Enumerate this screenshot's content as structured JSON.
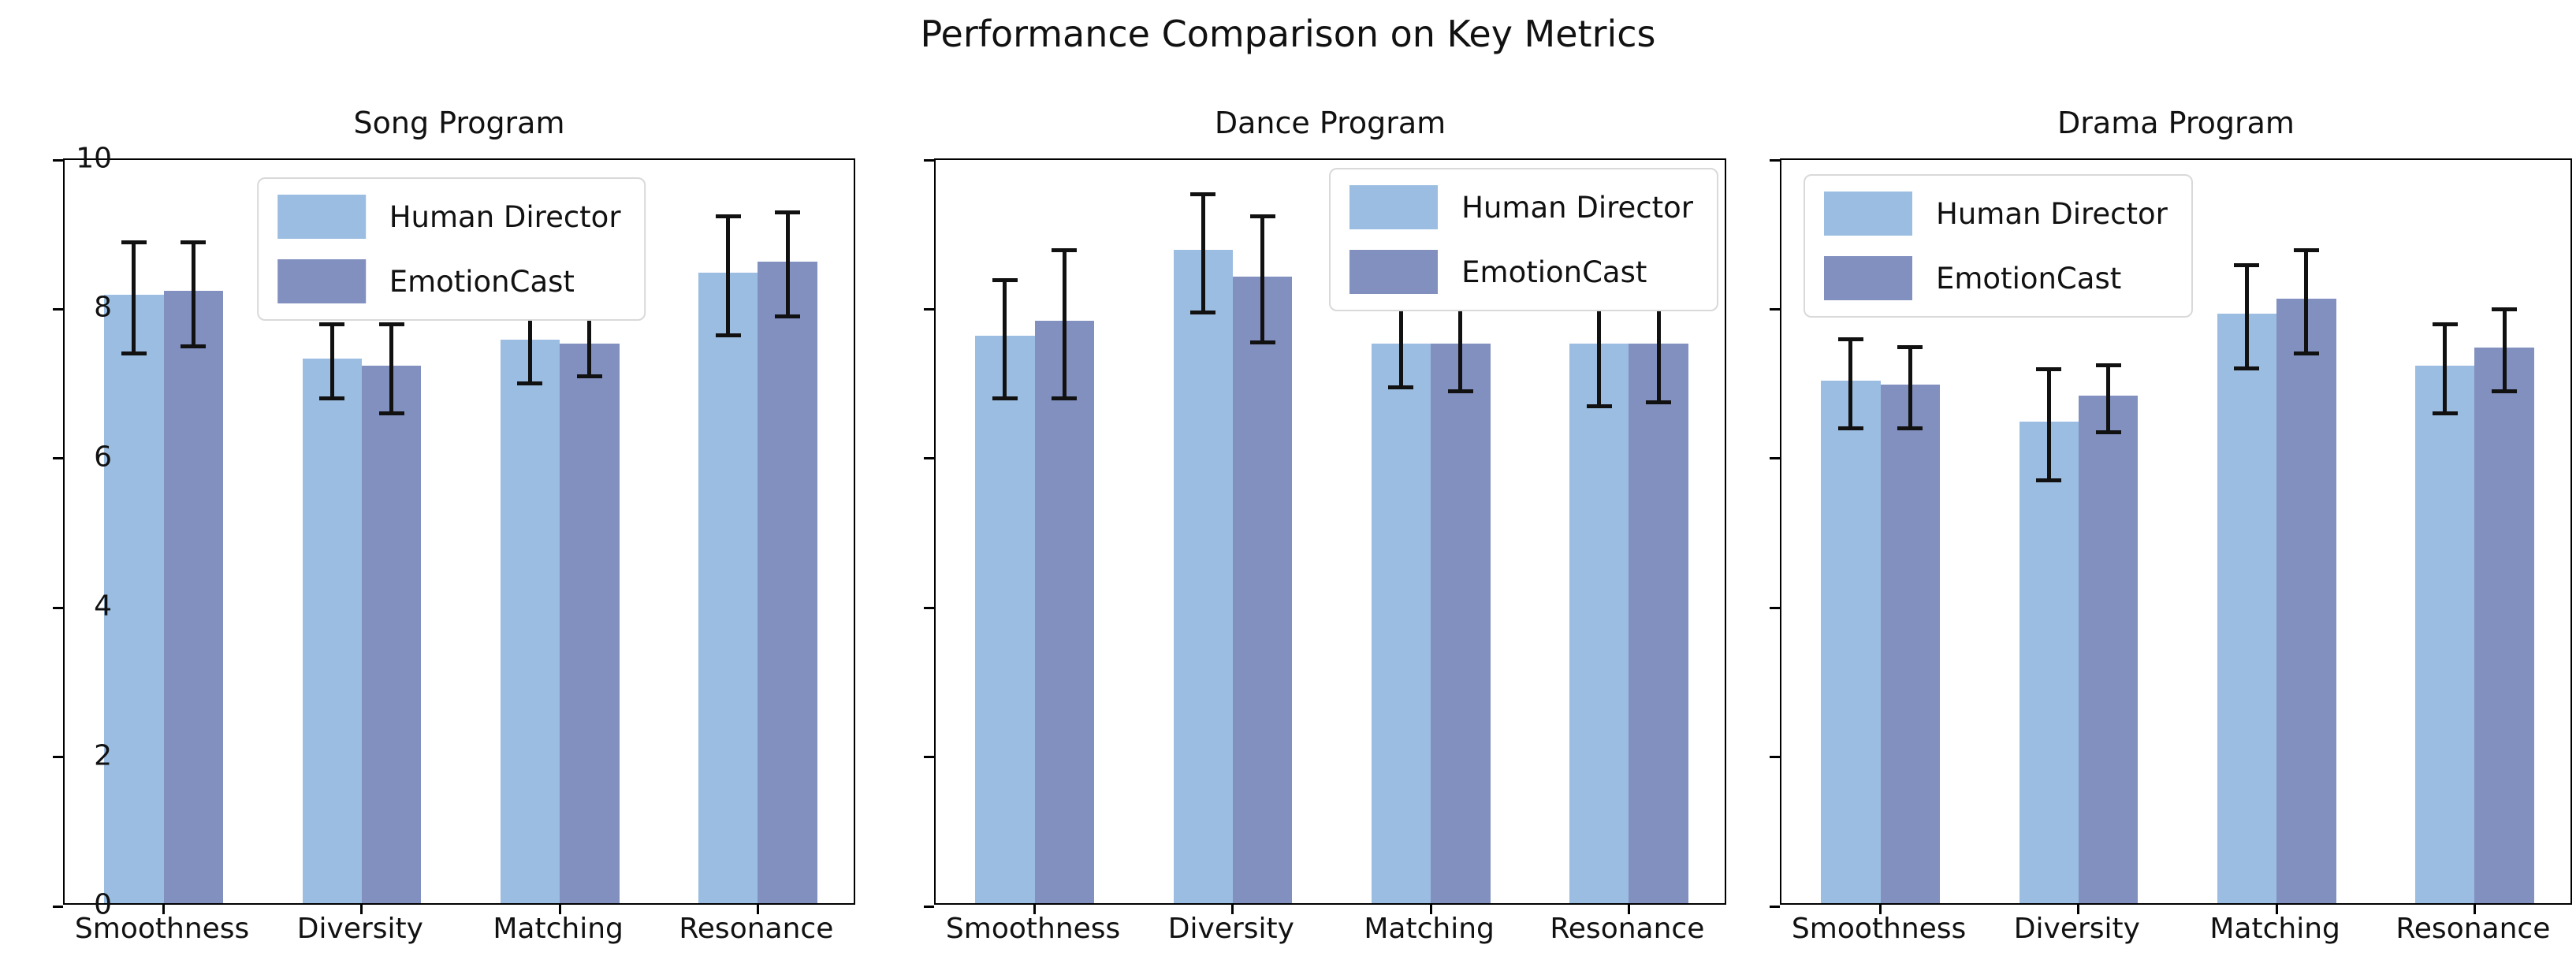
{
  "figure_title": "Performance Comparison on Key Metrics",
  "colors": {
    "human_director": "#9bbde1",
    "emotioncast": "#8290c0",
    "error_bar": "#111111",
    "axis": "#000000",
    "legend_border": "#d9d9d9"
  },
  "legend": {
    "labels": [
      "Human Director",
      "EmotionCast"
    ]
  },
  "chart_data": [
    {
      "type": "bar",
      "title": "Song Program",
      "categories": [
        "Smoothness",
        "Diversity",
        "Matching",
        "Resonance"
      ],
      "series": [
        {
          "name": "Human Director",
          "values": [
            8.15,
            7.3,
            7.55,
            8.45
          ],
          "errors": [
            0.75,
            0.5,
            0.55,
            0.8
          ]
        },
        {
          "name": "EmotionCast",
          "values": [
            8.2,
            7.2,
            7.5,
            8.6
          ],
          "errors": [
            0.7,
            0.6,
            0.4,
            0.7
          ]
        }
      ],
      "ylim": [
        0,
        10
      ],
      "yticks": [
        0,
        2,
        4,
        6,
        8,
        10
      ],
      "show_ytick_labels": true,
      "legend_position": "top-center",
      "grid": false
    },
    {
      "type": "bar",
      "title": "Dance Program",
      "categories": [
        "Smoothness",
        "Diversity",
        "Matching",
        "Resonance"
      ],
      "series": [
        {
          "name": "Human Director",
          "values": [
            7.6,
            8.75,
            7.5,
            7.5
          ],
          "errors": [
            0.8,
            0.8,
            0.55,
            0.8
          ]
        },
        {
          "name": "EmotionCast",
          "values": [
            7.8,
            8.4,
            7.5,
            7.5
          ],
          "errors": [
            1.0,
            0.85,
            0.6,
            0.75
          ]
        }
      ],
      "ylim": [
        0,
        10
      ],
      "yticks": [
        0,
        2,
        4,
        6,
        8,
        10
      ],
      "show_ytick_labels": false,
      "legend_position": "top-right",
      "grid": false
    },
    {
      "type": "bar",
      "title": "Drama Program",
      "categories": [
        "Smoothness",
        "Diversity",
        "Matching",
        "Resonance"
      ],
      "series": [
        {
          "name": "Human Director",
          "values": [
            7.0,
            6.45,
            7.9,
            7.2
          ],
          "errors": [
            0.6,
            0.75,
            0.7,
            0.6
          ]
        },
        {
          "name": "EmotionCast",
          "values": [
            6.95,
            6.8,
            8.1,
            7.45
          ],
          "errors": [
            0.55,
            0.45,
            0.7,
            0.55
          ]
        }
      ],
      "ylim": [
        0,
        10
      ],
      "yticks": [
        0,
        2,
        4,
        6,
        8,
        10
      ],
      "show_ytick_labels": false,
      "legend_position": "top-left",
      "grid": false
    }
  ]
}
